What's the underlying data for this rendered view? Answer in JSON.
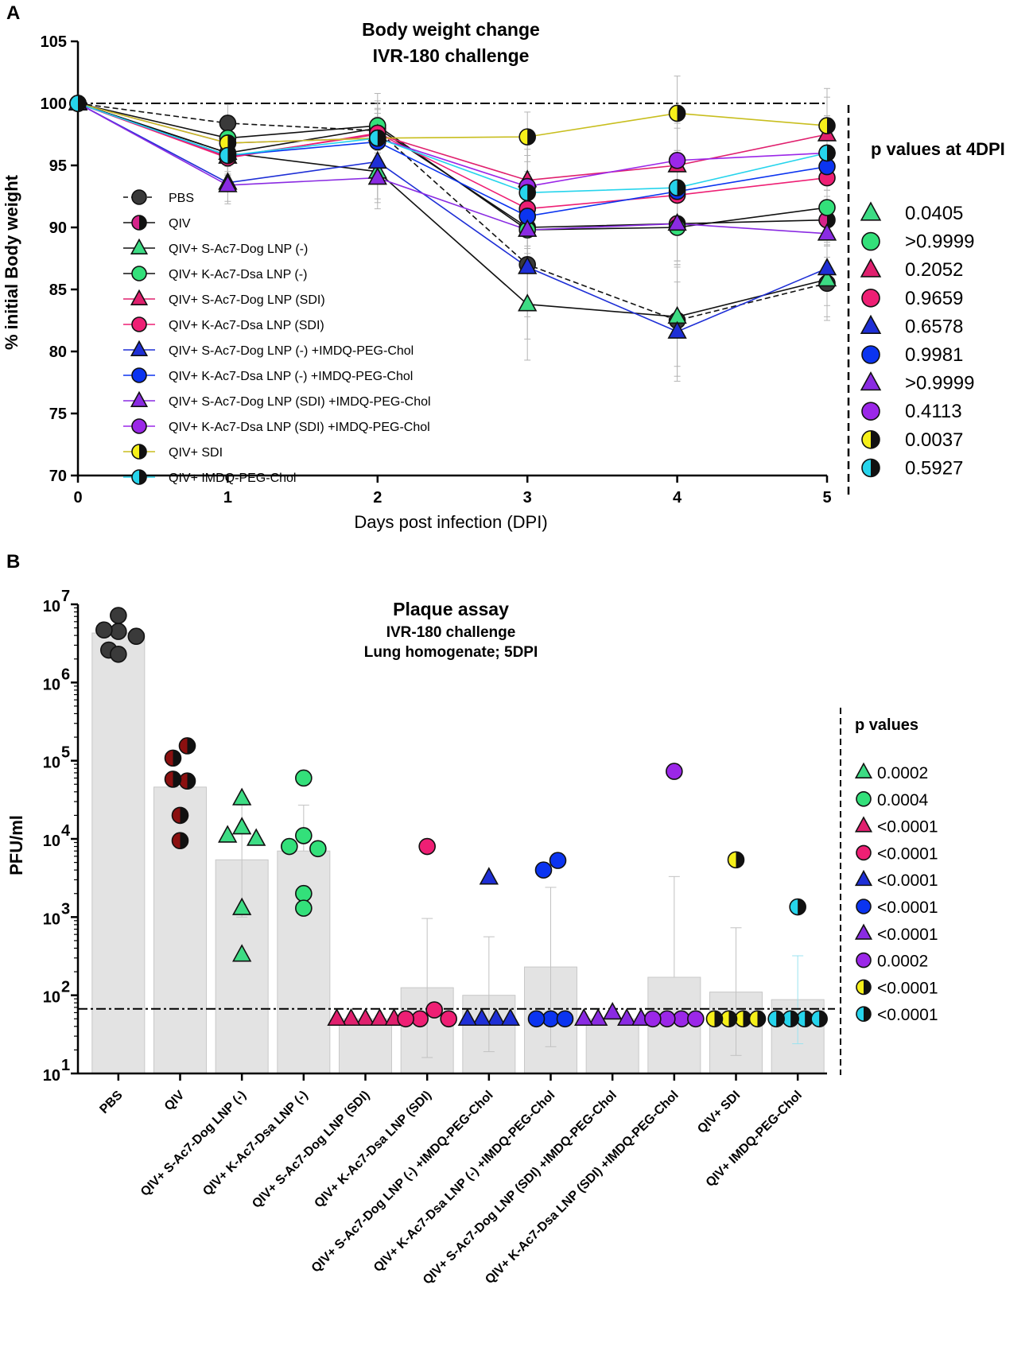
{
  "colors": {
    "PBS": "#3a3a3a",
    "QIV": "#d6248a",
    "QIV_half": "#111111",
    "S_neg": "#3ddc84",
    "K_neg": "#33e07a",
    "S_SDI": "#e0206e",
    "K_SDI": "#ee1f74",
    "S_IMDQ": "#1e2fd6",
    "K_IMDQ": "#0b34f0",
    "S_SDI_IMDQ": "#8a2be2",
    "K_SDI_IMDQ": "#9b27e8",
    "SDI": "#f6f01a",
    "IMDQ": "#26d4ec",
    "QIV_dark_red": "#8b1010",
    "bar_fill": "#e3e3e3",
    "line_S_neg": "#111111",
    "line_K_neg": "#111111",
    "line_SDI": "#c8be1e"
  },
  "chart_data": [
    {
      "panel": "A",
      "type": "line",
      "title": "Body weight change",
      "subtitle": "IVR-180 challenge",
      "xlabel": "Days post infection (DPI)",
      "ylabel": "% initial Body weight",
      "x": [
        0,
        1,
        2,
        3,
        4,
        5
      ],
      "xticks": [
        "0",
        "1",
        "2",
        "3",
        "4",
        "5"
      ],
      "ylim": [
        70,
        105
      ],
      "yticks": [
        "70",
        "75",
        "80",
        "85",
        "90",
        "95",
        "100",
        "105"
      ],
      "reference_line": 100,
      "pvalue_header": "p values at 4DPI",
      "series": [
        {
          "name": "PBS",
          "marker": "circle",
          "fill": "PBS",
          "line": "#111111",
          "dash": true,
          "values": [
            100,
            98.4,
            97.8,
            87.0,
            82.5,
            85.5
          ],
          "errors": [
            0,
            1.5,
            3,
            6,
            4.5,
            3
          ],
          "pvalue": null
        },
        {
          "name": "QIV",
          "marker": "circle-half",
          "fill": "QIV",
          "half": "QIV_half",
          "line": "#111111",
          "dash": false,
          "values": [
            100,
            96.0,
            98.0,
            90.0,
            90.3,
            90.6
          ],
          "errors": [
            0,
            1.5,
            2,
            3,
            3,
            3
          ],
          "pvalue": null
        },
        {
          "name": "QIV+ S-Ac7-Dog LNP (-)",
          "marker": "triangle",
          "fill": "S_neg",
          "line": "#111111",
          "dash": false,
          "values": [
            100,
            96.0,
            94.5,
            83.8,
            82.8,
            85.8
          ],
          "errors": [
            0,
            2,
            3,
            4.5,
            4,
            3
          ],
          "pvalue": "0.0405"
        },
        {
          "name": "QIV+ K-Ac7-Dsa LNP (-)",
          "marker": "circle",
          "fill": "K_neg",
          "line": "#111111",
          "dash": false,
          "values": [
            100,
            97.2,
            98.2,
            89.8,
            90.0,
            91.6
          ],
          "errors": [
            0,
            1.5,
            2,
            3,
            3,
            3
          ],
          "pvalue": ">0.9999"
        },
        {
          "name": "QIV+ S-Ac7-Dog LNP (SDI)",
          "marker": "triangle",
          "fill": "S_SDI",
          "line": "#e0206e",
          "dash": false,
          "values": [
            100,
            95.7,
            97.5,
            93.8,
            95.0,
            97.5
          ],
          "errors": [
            0,
            1.5,
            2,
            3,
            3,
            3
          ],
          "pvalue": "0.2052"
        },
        {
          "name": "QIV+ K-Ac7-Dsa LNP (SDI)",
          "marker": "circle",
          "fill": "K_SDI",
          "line": "#ee1f74",
          "dash": false,
          "values": [
            100,
            95.6,
            97.6,
            91.5,
            92.6,
            94.0
          ],
          "errors": [
            0,
            1.5,
            2,
            3,
            3,
            3
          ],
          "pvalue": "0.9659"
        },
        {
          "name": "QIV+ S-Ac7-Dog LNP (-) +IMDQ-PEG-Chol",
          "marker": "triangle",
          "fill": "S_IMDQ",
          "line": "#1e2fd6",
          "dash": false,
          "values": [
            100,
            93.6,
            95.3,
            86.8,
            81.6,
            86.7
          ],
          "errors": [
            0,
            1.5,
            3,
            4,
            4,
            3
          ],
          "pvalue": "0.6578"
        },
        {
          "name": "QIV+ K-Ac7-Dsa LNP (-) +IMDQ-PEG-Chol",
          "marker": "circle",
          "fill": "K_IMDQ",
          "line": "#0b34f0",
          "dash": false,
          "values": [
            100,
            95.8,
            96.9,
            90.9,
            92.9,
            94.9
          ],
          "errors": [
            0,
            1.5,
            2,
            3,
            3,
            3
          ],
          "pvalue": "0.9981"
        },
        {
          "name": "QIV+ S-Ac7-Dog LNP (SDI) +IMDQ-PEG-Chol",
          "marker": "triangle",
          "fill": "S_SDI_IMDQ",
          "line": "#8a2be2",
          "dash": false,
          "values": [
            100,
            93.4,
            94.0,
            89.8,
            90.3,
            89.5
          ],
          "errors": [
            0,
            1.5,
            2,
            3,
            3,
            3
          ],
          "pvalue": ">0.9999"
        },
        {
          "name": "QIV+ K-Ac7-Dsa LNP (SDI) +IMDQ-PEG-Chol",
          "marker": "circle",
          "fill": "K_SDI_IMDQ",
          "line": "#9b27e8",
          "dash": false,
          "values": [
            100,
            96.8,
            97.2,
            93.3,
            95.4,
            96.0
          ],
          "errors": [
            0,
            1.5,
            2,
            3,
            3,
            3
          ],
          "pvalue": "0.4113"
        },
        {
          "name": "QIV+ SDI",
          "marker": "circle-half",
          "fill": "SDI",
          "half": "QIV_half",
          "line": "#c8be1e",
          "dash": false,
          "values": [
            100,
            96.8,
            97.2,
            97.3,
            99.2,
            98.2
          ],
          "errors": [
            0,
            1.5,
            2,
            2,
            3,
            3
          ],
          "pvalue": "0.0037"
        },
        {
          "name": "QIV+ IMDQ-PEG-Chol",
          "marker": "circle-half",
          "fill": "IMDQ",
          "half": "QIV_half",
          "line": "#26d4ec",
          "dash": false,
          "values": [
            100,
            95.8,
            97.2,
            92.8,
            93.2,
            96.0
          ],
          "errors": [
            0,
            1.5,
            2,
            3,
            3,
            3
          ],
          "pvalue": "0.5927"
        }
      ]
    },
    {
      "panel": "B",
      "type": "bar",
      "title": "Plaque assay",
      "subtitle_lines": [
        "IVR-180 challenge",
        "Lung homogenate; 5DPI"
      ],
      "ylabel": "PFU/ml",
      "yscale": "log",
      "ylim": [
        10,
        10000000
      ],
      "yticks": [
        {
          "base": "10",
          "exp": "1"
        },
        {
          "base": "10",
          "exp": "2"
        },
        {
          "base": "10",
          "exp": "3"
        },
        {
          "base": "10",
          "exp": "4"
        },
        {
          "base": "10",
          "exp": "5"
        },
        {
          "base": "10",
          "exp": "6"
        },
        {
          "base": "10",
          "exp": "7"
        }
      ],
      "detection_limit": 67,
      "pvalue_header": "p values",
      "groups": [
        {
          "name": "PBS",
          "marker": "circle",
          "fill": "PBS",
          "bar": 4300000,
          "err_lo": null,
          "err_hi": null,
          "points": [
            7200000,
            4500000,
            4700000,
            3900000,
            2600000,
            2300000
          ],
          "pvalue": null
        },
        {
          "name": "QIV",
          "marker": "circle-half",
          "fill": "QIV_dark_red",
          "half": "QIV_half",
          "bar": 46000,
          "err_lo": null,
          "err_hi": null,
          "points": [
            155000,
            108000,
            55000,
            58000,
            20000,
            9500
          ],
          "pvalue": null
        },
        {
          "name": "QIV+ S-Ac7-Dog LNP (-)",
          "marker": "triangle",
          "fill": "S_neg",
          "bar": 5400,
          "err_lo": 1000,
          "err_hi": 27000,
          "points": [
            33000,
            14000,
            11000,
            10000,
            1300,
            330
          ],
          "pvalue": "0.0002"
        },
        {
          "name": "QIV+ K-Ac7-Dsa LNP (-)",
          "marker": "circle",
          "fill": "K_neg",
          "bar": 7000,
          "err_lo": null,
          "err_hi": 27000,
          "points": [
            60000,
            11000,
            8000,
            7500,
            2000,
            1300
          ],
          "pvalue": "0.0004"
        },
        {
          "name": "QIV+ S-Ac7-Dog LNP (SDI)",
          "marker": "triangle",
          "fill": "S_SDI",
          "bar": 50,
          "err_lo": null,
          "err_hi": null,
          "points": [
            50,
            50,
            50,
            50,
            50
          ],
          "pvalue": "<0.0001"
        },
        {
          "name": "QIV+ K-Ac7-Dsa LNP (SDI)",
          "marker": "circle",
          "fill": "K_SDI",
          "bar": 125,
          "err_lo": 16,
          "err_hi": 960,
          "points": [
            8000,
            65,
            50,
            50,
            50
          ],
          "pvalue": "<0.0001"
        },
        {
          "name": "QIV+ S-Ac7-Dog LNP (-) +IMDQ-PEG-Chol",
          "marker": "triangle",
          "fill": "S_IMDQ",
          "bar": 100,
          "err_lo": 19,
          "err_hi": 560,
          "points": [
            3200,
            50,
            50,
            50,
            50
          ],
          "pvalue": "<0.0001"
        },
        {
          "name": "QIV+ K-Ac7-Dsa LNP (-) +IMDQ-PEG-Chol",
          "marker": "circle",
          "fill": "K_IMDQ",
          "bar": 230,
          "err_lo": 22,
          "err_hi": 2400,
          "points": [
            5300,
            4000,
            50,
            50,
            50
          ],
          "pvalue": "<0.0001"
        },
        {
          "name": "QIV+ S-Ac7-Dog LNP (SDI) +IMDQ-PEG-Chol",
          "marker": "triangle",
          "fill": "S_SDI_IMDQ",
          "bar": 50,
          "err_lo": null,
          "err_hi": null,
          "points": [
            60,
            50,
            50,
            50,
            50
          ],
          "pvalue": "<0.0001"
        },
        {
          "name": "QIV+ K-Ac7-Dsa LNP (SDI) +IMDQ-PEG-Chol",
          "marker": "circle",
          "fill": "K_SDI_IMDQ",
          "bar": 170,
          "err_lo": null,
          "err_hi": 3300,
          "points": [
            73000,
            50,
            50,
            50,
            50
          ],
          "pvalue": "0.0002"
        },
        {
          "name": "QIV+ SDI",
          "marker": "circle-half",
          "fill": "SDI",
          "half": "QIV_half",
          "bar": 110,
          "err_lo": 17,
          "err_hi": 730,
          "points": [
            5400,
            50,
            50,
            50,
            50
          ],
          "pvalue": "<0.0001"
        },
        {
          "name": "QIV+ IMDQ-PEG-Chol",
          "marker": "circle-half",
          "fill": "IMDQ",
          "half": "QIV_half",
          "bar": 88,
          "err_lo": 24,
          "err_hi": 320,
          "points": [
            1350,
            50,
            50,
            50,
            50
          ],
          "pvalue": "<0.0001"
        }
      ]
    }
  ],
  "panel_labels": [
    "A",
    "B"
  ]
}
